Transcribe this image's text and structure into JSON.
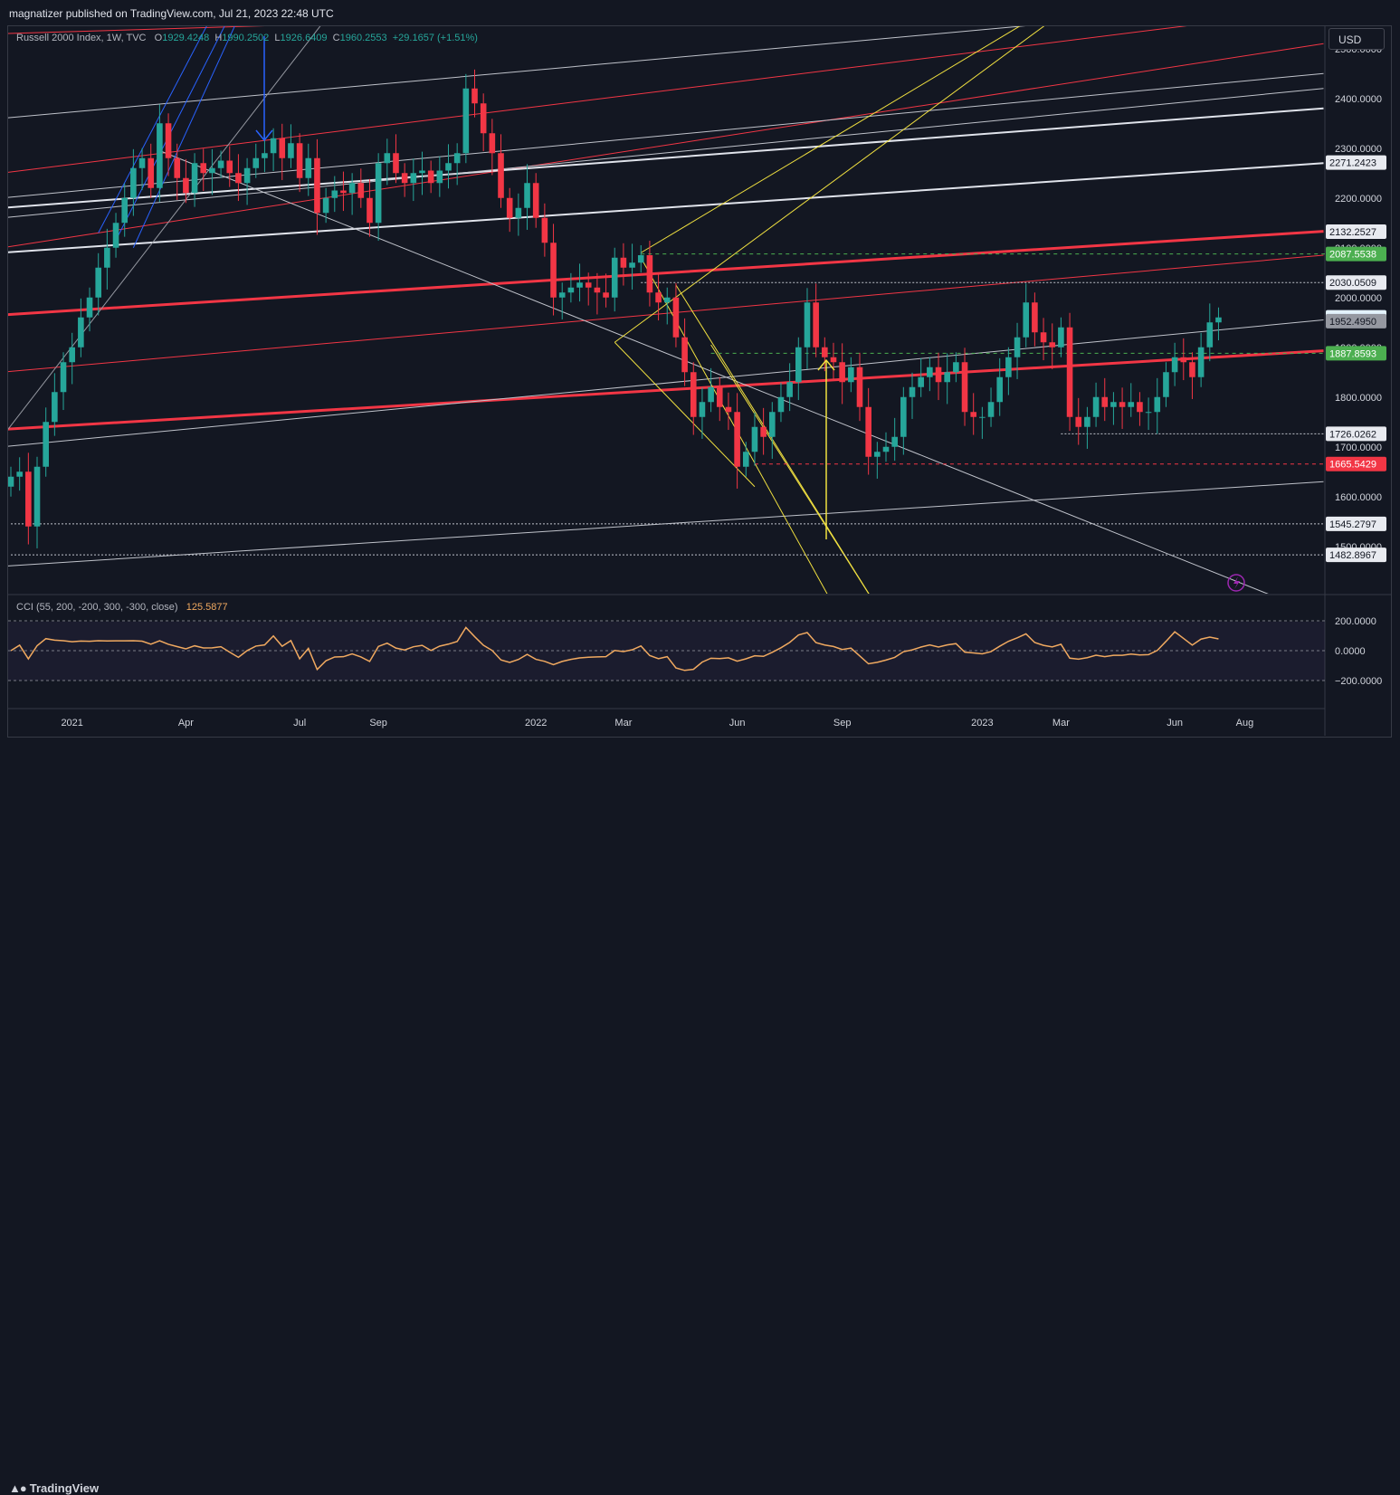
{
  "header": {
    "published": "magnatizer published on TradingView.com, Jul 21, 2023 22:48 UTC"
  },
  "legend": {
    "symbol": "Russell 2000 Index, 1W, TVC",
    "o_label": "O",
    "o": "1929.4248",
    "h_label": "H",
    "h": "1990.2502",
    "l_label": "L",
    "l": "1926.6409",
    "c_label": "C",
    "c": "1960.2553",
    "change": "+29.1657 (+1.51%)"
  },
  "currency": "USD",
  "cci": {
    "label": "CCI (55, 200, -200, 300, -300, close)",
    "value": "125.5877",
    "ticks": [
      "200.0000",
      "0.0000",
      "−200.0000"
    ]
  },
  "footer": {
    "brand": "TradingView",
    "logo_icon": "tradingview-logo-icon"
  },
  "chart_data": {
    "type": "candlestick",
    "y_ticks": [
      "2500.0000",
      "2400.0000",
      "2300.0000",
      "2200.0000",
      "2100.0000",
      "2000.0000",
      "1900.0000",
      "1800.0000",
      "1700.0000",
      "1600.0000",
      "1500.0000"
    ],
    "ylim": [
      1405,
      2545
    ],
    "x_ticks": [
      "2021",
      "Apr",
      "Jul",
      "Sep",
      "2022",
      "Mar",
      "Jun",
      "Sep",
      "2023",
      "Mar",
      "Jun",
      "Aug"
    ],
    "x_tick_weeks": [
      7,
      20,
      33,
      42,
      60,
      70,
      83,
      95,
      111,
      120,
      133,
      141
    ],
    "week_count": 150,
    "price_tags": [
      {
        "value": "2271.2423",
        "price": 2271.24,
        "bg": "#e8eaf0",
        "fg": "#131722"
      },
      {
        "value": "2132.2527",
        "price": 2132.25,
        "bg": "#e8eaf0",
        "fg": "#131722"
      },
      {
        "value": "2087.5538",
        "price": 2087.55,
        "bg": "#4caf50",
        "fg": "#ffffff"
      },
      {
        "value": "2030.0509",
        "price": 2030.05,
        "bg": "#e8eaf0",
        "fg": "#131722"
      },
      {
        "value": "1960.2553",
        "price": 1960.26,
        "bg": "#e3f2fd",
        "fg": "#131722"
      },
      {
        "value": "1952.4950",
        "price": 1952.5,
        "bg": "#9598a1",
        "fg": "#131722"
      },
      {
        "value": "1887.8593",
        "price": 1887.86,
        "bg": "#4caf50",
        "fg": "#ffffff"
      },
      {
        "value": "1726.0262",
        "price": 1726.03,
        "bg": "#e8eaf0",
        "fg": "#131722"
      },
      {
        "value": "1665.5429",
        "price": 1665.54,
        "bg": "#f23645",
        "fg": "#ffffff"
      },
      {
        "value": "1545.2797",
        "price": 1545.28,
        "bg": "#e8eaf0",
        "fg": "#131722"
      },
      {
        "value": "1482.8967",
        "price": 1482.9,
        "bg": "#e8eaf0",
        "fg": "#131722"
      }
    ],
    "closes": [
      1640,
      1650,
      1540,
      1660,
      1750,
      1810,
      1870,
      1900,
      1960,
      2000,
      2060,
      2100,
      2150,
      2200,
      2260,
      2280,
      2220,
      2350,
      2280,
      2240,
      2210,
      2270,
      2250,
      2260,
      2275,
      2250,
      2230,
      2260,
      2280,
      2290,
      2320,
      2280,
      2310,
      2240,
      2280,
      2170,
      2200,
      2215,
      2210,
      2230,
      2200,
      2150,
      2270,
      2290,
      2250,
      2230,
      2250,
      2255,
      2230,
      2255,
      2270,
      2290,
      2420,
      2390,
      2330,
      2290,
      2200,
      2160,
      2180,
      2230,
      2160,
      2110,
      2000,
      2010,
      2020,
      2030,
      2020,
      2010,
      2000,
      2080,
      2060,
      2070,
      2085,
      2010,
      1990,
      2000,
      1920,
      1850,
      1760,
      1790,
      1820,
      1780,
      1770,
      1660,
      1690,
      1740,
      1720,
      1770,
      1800,
      1830,
      1900,
      1990,
      1900,
      1880,
      1870,
      1830,
      1860,
      1780,
      1680,
      1690,
      1700,
      1720,
      1800,
      1820,
      1840,
      1860,
      1830,
      1850,
      1870,
      1770,
      1760,
      1760,
      1790,
      1840,
      1880,
      1920,
      1990,
      1930,
      1910,
      1900,
      1940,
      1760,
      1740,
      1760,
      1800,
      1780,
      1790,
      1780,
      1790,
      1770,
      1770,
      1800,
      1850,
      1880,
      1870,
      1840,
      1900,
      1950,
      1960
    ]
  }
}
